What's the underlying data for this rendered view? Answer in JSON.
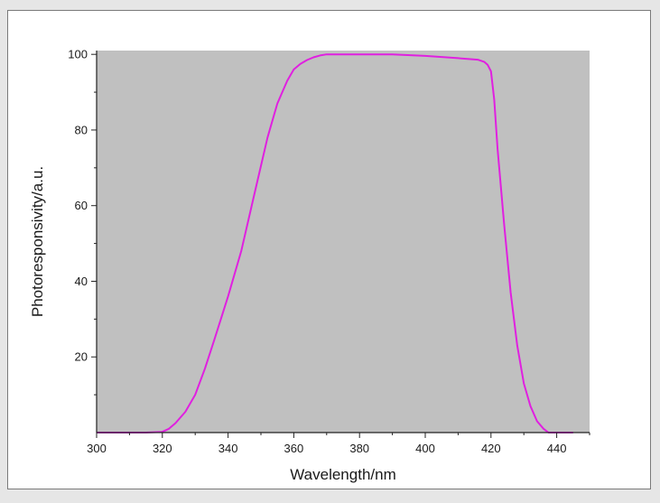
{
  "chart_data": {
    "type": "line",
    "xlabel": "Wavelength/nm",
    "ylabel": "Photoresponsivity/a.u.",
    "xlim": [
      300,
      450
    ],
    "ylim": [
      0,
      101
    ],
    "x_ticks": [
      300,
      320,
      340,
      360,
      380,
      400,
      420,
      440
    ],
    "y_ticks": [
      20,
      40,
      60,
      80,
      100
    ],
    "grid": false,
    "plot_background": "#c0c0c0",
    "line_color": "#e020e0",
    "series": [
      {
        "x": [
          300,
          315,
          320,
          322,
          324,
          327,
          330,
          333,
          336,
          340,
          344,
          348,
          352,
          355,
          358,
          360,
          362,
          364,
          366,
          368,
          370,
          375,
          380,
          390,
          400,
          410,
          416,
          418,
          419,
          420,
          421,
          422,
          424,
          426,
          428,
          430,
          432,
          434,
          436,
          437.5,
          440,
          445
        ],
        "y": [
          0,
          0,
          0.2,
          1,
          2.5,
          5.5,
          10,
          17,
          25,
          36,
          48,
          63,
          78,
          87,
          93,
          96,
          97.5,
          98.5,
          99.2,
          99.7,
          100,
          100,
          100,
          100,
          99.6,
          99,
          98.6,
          98,
          97.2,
          95.5,
          88,
          75,
          55,
          37,
          23,
          13,
          7,
          3,
          1,
          0,
          0,
          0
        ]
      }
    ]
  }
}
